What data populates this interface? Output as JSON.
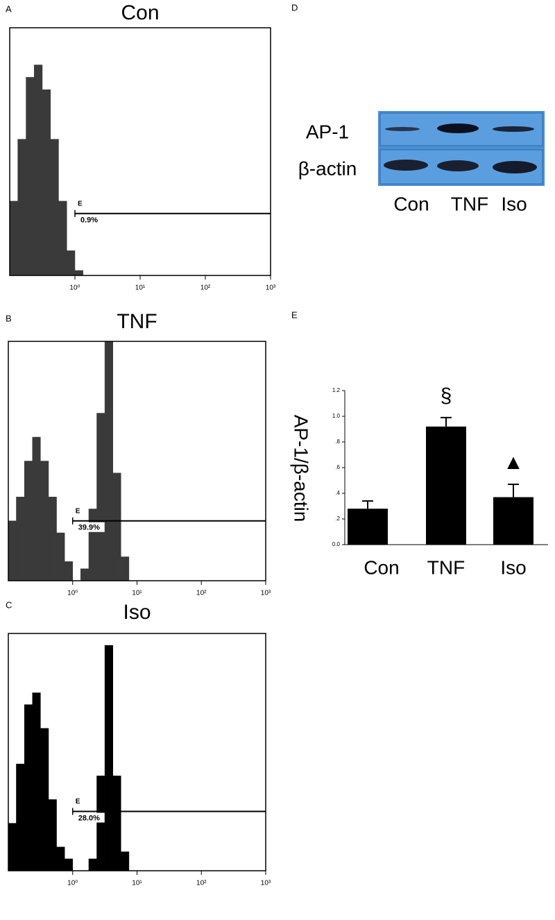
{
  "chart_data": [
    {
      "type": "histogram",
      "panel_label": "A",
      "title": "Con",
      "color": "#3a3a3a",
      "bins": [
        0.1,
        0.133,
        0.178,
        0.237,
        0.316,
        0.422,
        0.562,
        0.75,
        1,
        1.33,
        1.78,
        2.37,
        3.16,
        4.22,
        5.62,
        7.5,
        10
      ],
      "counts": [
        30,
        55,
        80,
        85,
        75,
        55,
        30,
        10,
        2,
        0,
        0,
        0,
        0,
        0,
        0,
        0
      ],
      "xscale": "log",
      "xlim": [
        0.1,
        1000
      ],
      "ylim": [
        0,
        100
      ],
      "xticks": [
        {
          "value": 1,
          "label": "10⁰"
        },
        {
          "value": 10,
          "label": "10¹"
        },
        {
          "value": 100,
          "label": "10²"
        },
        {
          "value": 1000,
          "label": "10³"
        }
      ],
      "gate": {
        "label": "E",
        "range": [
          1,
          1000
        ],
        "percent_label": "0.9%"
      }
    },
    {
      "type": "histogram",
      "panel_label": "B",
      "title": "TNF",
      "color": "#3a3a3a",
      "bins": [
        0.1,
        0.133,
        0.178,
        0.237,
        0.316,
        0.422,
        0.562,
        0.75,
        1,
        1.33,
        1.78,
        2.37,
        3.16,
        4.22,
        5.62,
        7.5,
        10
      ],
      "counts": [
        25,
        35,
        50,
        60,
        50,
        35,
        20,
        8,
        0,
        5,
        30,
        70,
        100,
        45,
        10,
        0
      ],
      "xscale": "log",
      "xlim": [
        0.1,
        1000
      ],
      "ylim": [
        0,
        100
      ],
      "xticks": [
        {
          "value": 1,
          "label": "10⁰"
        },
        {
          "value": 10,
          "label": "10¹"
        },
        {
          "value": 100,
          "label": "10²"
        },
        {
          "value": 1000,
          "label": "10³"
        }
      ],
      "gate": {
        "label": "E",
        "range": [
          1,
          1000
        ],
        "percent_label": "39.9%"
      }
    },
    {
      "type": "histogram",
      "panel_label": "C",
      "title": "Iso",
      "color": "#000000",
      "bins": [
        0.1,
        0.133,
        0.178,
        0.237,
        0.316,
        0.422,
        0.562,
        0.75,
        1,
        1.33,
        1.78,
        2.37,
        3.16,
        4.22,
        5.62,
        7.5,
        10
      ],
      "counts": [
        20,
        45,
        70,
        75,
        60,
        30,
        10,
        5,
        0,
        0,
        5,
        40,
        95,
        40,
        8,
        0
      ],
      "xscale": "log",
      "xlim": [
        0.1,
        1000
      ],
      "ylim": [
        0,
        100
      ],
      "xticks": [
        {
          "value": 1,
          "label": "10⁰"
        },
        {
          "value": 10,
          "label": "10¹"
        },
        {
          "value": 100,
          "label": "10²"
        },
        {
          "value": 1000,
          "label": "10³"
        }
      ],
      "gate": {
        "label": "E",
        "range": [
          1,
          1000
        ],
        "percent_label": "28.0%"
      }
    },
    {
      "type": "bar",
      "panel_label": "E",
      "y_label": "AP-1/β-actin",
      "color": "#000000",
      "categories": [
        "Con",
        "TNF",
        "Iso"
      ],
      "values": [
        0.28,
        0.92,
        0.37
      ],
      "errors": [
        0.06,
        0.07,
        0.1
      ],
      "annotations": [
        null,
        "§",
        "▲"
      ],
      "ylim": [
        0,
        1.2
      ],
      "yticks": [
        {
          "value": 0,
          "label": "0.0"
        },
        {
          "value": 0.2,
          "label": ".2"
        },
        {
          "value": 0.4,
          "label": ".4"
        },
        {
          "value": 0.6,
          "label": ".6"
        },
        {
          "value": 0.8,
          "label": ".8"
        },
        {
          "value": 1.0,
          "label": "1.0"
        },
        {
          "value": 1.2,
          "label": "1.2"
        }
      ]
    }
  ],
  "blot": {
    "panel_label": "D",
    "rows": [
      "AP-1",
      "β-actin"
    ],
    "lanes": [
      "Con",
      "TNF",
      "Iso"
    ]
  }
}
